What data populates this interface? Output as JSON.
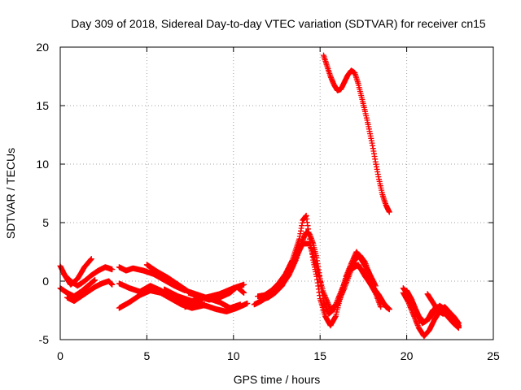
{
  "chart_data": {
    "type": "scatter",
    "title": "Day 309 of 2018, Sidereal Day-to-day VTEC variation (SDTVAR) for receiver cn15",
    "xlabel": "GPS time / hours",
    "ylabel": "SDTVAR / TECUs",
    "xlim": [
      0,
      25
    ],
    "ylim": [
      -5,
      20
    ],
    "xticks": [
      "0",
      "5",
      "10",
      "15",
      "20",
      "25"
    ],
    "yticks": [
      "-5",
      "0",
      "5",
      "10",
      "15",
      "20"
    ],
    "xtick_values": [
      0,
      5,
      10,
      15,
      20,
      25
    ],
    "ytick_values": [
      -5,
      0,
      5,
      10,
      15,
      20
    ],
    "grid": true,
    "marker": "plus",
    "color": "#ff0000",
    "series": [
      {
        "name": "s1",
        "x": [
          0,
          0.3,
          0.6,
          1.0,
          1.4,
          1.8
        ],
        "y": [
          1.3,
          0.4,
          -0.3,
          0.2,
          1.2,
          1.9
        ]
      },
      {
        "name": "s2",
        "x": [
          0,
          0.4,
          0.8,
          1.2,
          1.6,
          2.0
        ],
        "y": [
          -0.6,
          -1.0,
          -1.3,
          -0.9,
          -0.4,
          0.1
        ]
      },
      {
        "name": "s3",
        "x": [
          0.2,
          0.6,
          1.0,
          1.4,
          1.8,
          2.2,
          2.6,
          3.0
        ],
        "y": [
          0.6,
          0.0,
          -0.4,
          0.0,
          0.5,
          0.9,
          1.2,
          1.0
        ]
      },
      {
        "name": "s4",
        "x": [
          0.4,
          0.8,
          1.2,
          1.6,
          2.0,
          2.4,
          2.8,
          3.0
        ],
        "y": [
          -1.4,
          -1.7,
          -1.3,
          -0.9,
          -0.5,
          -0.2,
          0.0,
          -0.3
        ]
      },
      {
        "name": "s5",
        "x": [
          3.4,
          4.0,
          4.6,
          5.2,
          5.8,
          6.4,
          7.0,
          7.6,
          8.2
        ],
        "y": [
          -2.3,
          -1.8,
          -1.2,
          -0.8,
          -1.0,
          -1.5,
          -2.0,
          -2.3,
          -2.1
        ]
      },
      {
        "name": "s6",
        "x": [
          3.4,
          4.0,
          4.6,
          5.2,
          5.8,
          6.4,
          7.0,
          7.6,
          8.2
        ],
        "y": [
          -0.2,
          -0.6,
          -0.9,
          -0.4,
          -0.8,
          -1.3,
          -1.6,
          -2.0,
          -1.8
        ]
      },
      {
        "name": "s7",
        "x": [
          3.4,
          3.8,
          4.2,
          4.8,
          5.4,
          6.0,
          6.6,
          7.2
        ],
        "y": [
          1.2,
          0.9,
          1.1,
          0.9,
          0.6,
          0.1,
          -0.4,
          -0.8
        ]
      },
      {
        "name": "s8",
        "x": [
          5.0,
          5.6,
          6.2,
          6.8,
          7.4,
          8.0,
          8.6,
          9.2,
          9.8,
          10.4
        ],
        "y": [
          1.4,
          0.8,
          0.3,
          -0.3,
          -0.9,
          -1.2,
          -1.5,
          -1.8,
          -2.3,
          -2.0
        ]
      },
      {
        "name": "s9",
        "x": [
          6.0,
          6.8,
          7.6,
          8.4,
          9.2,
          10.0,
          10.6
        ],
        "y": [
          -0.7,
          -1.3,
          -1.7,
          -1.4,
          -1.1,
          -0.6,
          -0.3
        ]
      },
      {
        "name": "s10",
        "x": [
          7.2,
          7.8,
          8.4,
          9.0,
          9.6,
          10.2,
          10.8
        ],
        "y": [
          -2.2,
          -2.0,
          -2.1,
          -2.4,
          -2.6,
          -2.3,
          -1.9
        ]
      },
      {
        "name": "s11",
        "x": [
          7.4,
          8.0,
          8.6,
          9.2,
          9.8,
          10.2,
          10.6
        ],
        "y": [
          -1.0,
          -1.3,
          -1.6,
          -1.4,
          -1.0,
          -0.5,
          -1.0
        ]
      },
      {
        "name": "s12",
        "x": [
          11.2,
          11.6,
          12.0,
          12.4,
          12.8,
          13.2,
          13.6,
          14.0,
          14.2,
          14.4,
          14.6,
          14.8,
          15.0,
          15.2,
          15.5,
          15.8,
          16.1,
          16.4,
          16.7,
          17.0,
          17.3,
          17.6,
          17.9,
          18.2,
          18.5
        ],
        "y": [
          -2.0,
          -1.7,
          -1.3,
          -0.9,
          -0.3,
          0.5,
          1.8,
          3.5,
          4.2,
          4.0,
          3.2,
          2.0,
          0.2,
          -1.8,
          -2.8,
          -2.4,
          -1.3,
          -0.2,
          0.9,
          1.8,
          2.2,
          1.6,
          0.4,
          -1.0,
          -2.2
        ]
      },
      {
        "name": "s13",
        "x": [
          11.4,
          11.8,
          12.2,
          12.6,
          13.0,
          13.4,
          13.8,
          14.0,
          14.2,
          14.4,
          14.6,
          14.8,
          15.0,
          15.3,
          15.6,
          15.9,
          16.2,
          16.5,
          16.8,
          17.1,
          17.4,
          17.8,
          18.2
        ],
        "y": [
          -1.3,
          -1.2,
          -0.8,
          -0.2,
          0.6,
          1.8,
          3.6,
          5.2,
          5.6,
          3.6,
          1.8,
          0.4,
          -1.5,
          -3.0,
          -3.8,
          -3.0,
          -1.2,
          0.4,
          1.5,
          2.5,
          1.8,
          0.8,
          -0.4
        ]
      },
      {
        "name": "s14",
        "x": [
          11.6,
          12.0,
          12.4,
          12.8,
          13.2,
          13.6,
          14.0,
          14.4,
          14.8,
          15.2,
          15.6,
          16.0,
          16.4,
          16.8,
          17.2,
          17.6,
          18.0,
          18.4,
          18.8,
          19.0
        ],
        "y": [
          -1.6,
          -1.4,
          -1.0,
          -0.4,
          0.6,
          2.0,
          3.2,
          3.2,
          1.2,
          -1.0,
          -2.4,
          -2.0,
          -0.6,
          1.0,
          1.4,
          0.4,
          -0.4,
          -1.2,
          -2.2,
          -2.4
        ]
      },
      {
        "name": "s15",
        "x": [
          17.0,
          17.4,
          17.8,
          18.2,
          18.6,
          19.0
        ],
        "y": [
          1.5,
          1.0,
          0.0,
          -1.0,
          -1.8,
          -2.4
        ]
      },
      {
        "name": "s16",
        "x": [
          19.8,
          20.1,
          20.4,
          20.7,
          21.0,
          21.3,
          21.6,
          21.9,
          22.2,
          22.5,
          22.8,
          23.0
        ],
        "y": [
          -0.6,
          -1.2,
          -2.0,
          -3.0,
          -3.5,
          -3.2,
          -2.6,
          -2.1,
          -2.4,
          -2.9,
          -3.4,
          -3.9
        ]
      },
      {
        "name": "s17",
        "x": [
          19.8,
          20.1,
          20.4,
          20.7,
          21.0,
          21.3,
          21.6,
          21.9,
          22.2,
          22.5,
          22.8,
          23.0
        ],
        "y": [
          -1.0,
          -1.8,
          -2.9,
          -4.0,
          -4.7,
          -4.2,
          -3.3,
          -2.6,
          -2.2,
          -2.7,
          -3.2,
          -3.8
        ]
      },
      {
        "name": "s18",
        "x": [
          20.0,
          20.3,
          20.6,
          20.9,
          21.2,
          21.5,
          21.8,
          22.1,
          22.4,
          22.7,
          23.0
        ],
        "y": [
          -0.8,
          -1.6,
          -2.8,
          -3.6,
          -3.3,
          -2.5,
          -2.2,
          -2.6,
          -3.1,
          -3.6,
          -4.0
        ]
      },
      {
        "name": "s19",
        "x": [
          21.2,
          21.5,
          21.8,
          22.1,
          22.4,
          22.7,
          23.0
        ],
        "y": [
          -1.1,
          -1.8,
          -2.5,
          -2.8,
          -2.6,
          -3.0,
          -3.6
        ]
      },
      {
        "name": "s20",
        "x": [
          15.2,
          15.4,
          15.6,
          15.8,
          16.0,
          16.2,
          16.4,
          16.6,
          16.8,
          17.0,
          17.2,
          17.4,
          17.6,
          17.8,
          18.0,
          18.2,
          18.4,
          18.6,
          18.8,
          19.0
        ],
        "y": [
          19.3,
          18.4,
          17.5,
          16.8,
          16.3,
          16.4,
          17.0,
          17.6,
          18.0,
          17.8,
          16.9,
          15.7,
          14.5,
          13.2,
          11.8,
          10.2,
          8.7,
          7.4,
          6.5,
          5.9
        ]
      }
    ]
  }
}
